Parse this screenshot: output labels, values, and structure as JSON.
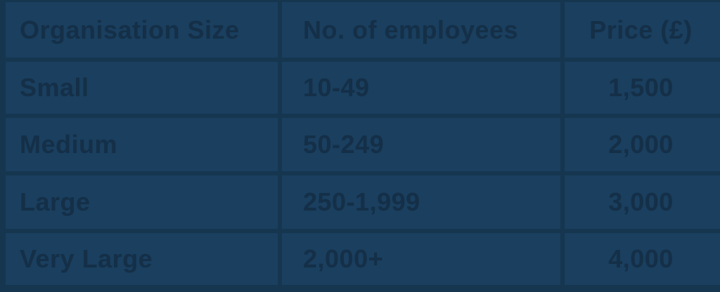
{
  "colors": {
    "cell_background": "#1a3f5f",
    "gap_background": "#163650",
    "text": "#142f47"
  },
  "chart_data": {
    "type": "table",
    "title": "Organisation pricing table",
    "columns": [
      "Organisation Size",
      "No. of employees",
      "Price (£)"
    ],
    "rows": [
      [
        "Small",
        "10-49",
        "1,500"
      ],
      [
        "Medium",
        "50-249",
        "2,000"
      ],
      [
        "Large",
        "250-1,999",
        "3,000"
      ],
      [
        "Very Large",
        "2,000+",
        "4,000"
      ]
    ],
    "layout_hints": {
      "header_row": true,
      "column_alignment": [
        "left",
        "left",
        "center"
      ],
      "grid": "separated-cells-on-darker-background"
    }
  }
}
